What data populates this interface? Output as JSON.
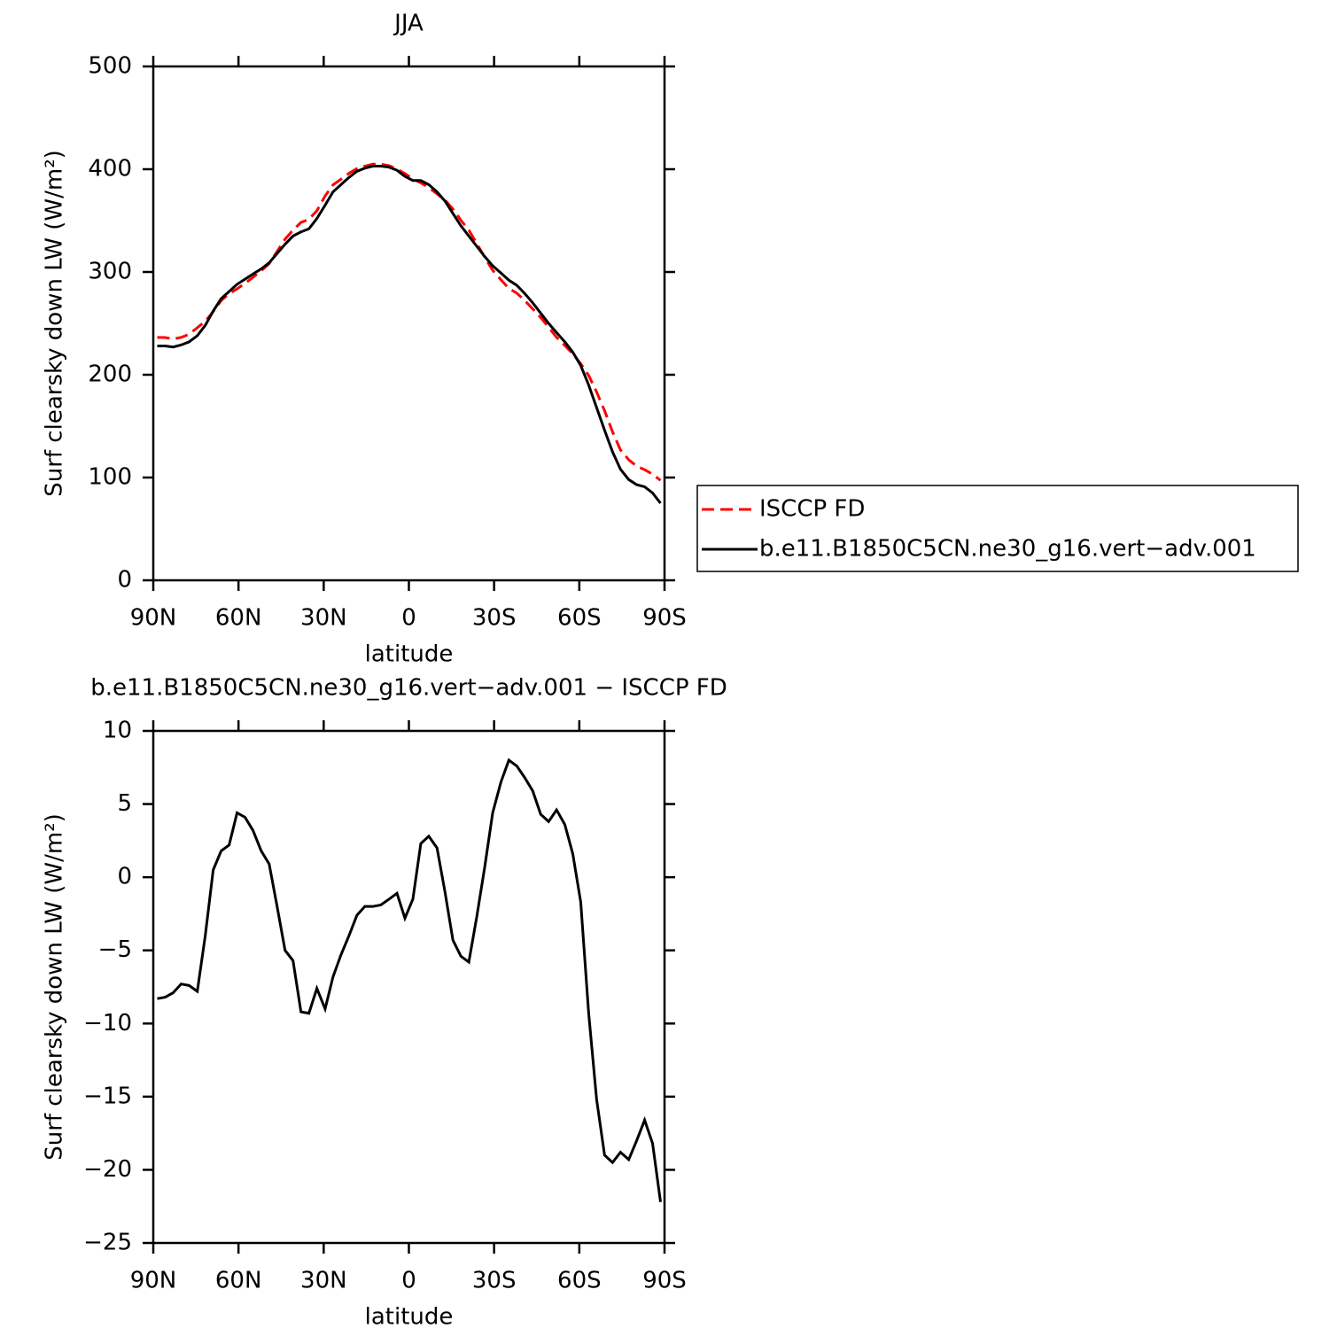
{
  "chart_data": [
    {
      "type": "line",
      "title": "JJA",
      "x_label": "latitude",
      "y_label": "Surf clearsky down LW (W/m²)",
      "x": [
        88.6,
        85.8,
        83.0,
        80.2,
        77.4,
        74.5,
        71.7,
        68.9,
        66.1,
        63.3,
        60.5,
        57.7,
        54.9,
        52.0,
        49.2,
        46.4,
        43.6,
        40.8,
        38.0,
        35.2,
        32.4,
        29.5,
        26.7,
        23.9,
        21.1,
        18.3,
        15.5,
        12.7,
        9.9,
        7.0,
        4.2,
        1.4,
        -1.4,
        -4.2,
        -7.0,
        -9.9,
        -12.7,
        -15.5,
        -18.3,
        -21.1,
        -23.9,
        -26.7,
        -29.5,
        -32.4,
        -35.2,
        -38.0,
        -40.8,
        -43.6,
        -46.4,
        -49.2,
        -52.0,
        -54.9,
        -57.7,
        -60.5,
        -63.3,
        -66.1,
        -68.9,
        -71.7,
        -74.5,
        -77.4,
        -80.2,
        -83.0,
        -85.8,
        -88.6
      ],
      "series": [
        {
          "name": "ISCCP FD",
          "color": "#ff0000",
          "style": "dashed",
          "values": [
            236.3,
            236.2,
            234.9,
            236.3,
            239.4,
            245.8,
            252,
            261.5,
            272.2,
            278.8,
            283.6,
            288.9,
            294.8,
            301.2,
            308.1,
            320,
            332,
            340.7,
            348.2,
            351.3,
            359.6,
            374,
            384.8,
            390.3,
            396,
            400.6,
            403,
            405,
            404.9,
            403.5,
            400.1,
            395.8,
            390.5,
            386.7,
            382.2,
            376,
            370,
            361.3,
            350.4,
            340.8,
            327.7,
            314.3,
            301.6,
            292.5,
            284,
            279.4,
            272.2,
            264.1,
            255.7,
            246.2,
            236.4,
            228.4,
            220.4,
            210.7,
            199.3,
            183.2,
            165,
            144.5,
            126.8,
            117.3,
            111,
            107.6,
            103.2,
            97.2
          ]
        },
        {
          "name": "b.e11.B1850C5CN.ne30_g16.vert−adv.001",
          "color": "#000000",
          "style": "solid",
          "values": [
            228,
            228,
            227,
            229,
            232,
            238,
            248,
            262,
            274,
            281,
            288,
            293,
            298,
            303,
            309,
            318,
            327,
            335,
            339,
            342,
            352,
            365,
            378,
            385,
            392,
            398,
            401,
            403,
            403,
            402,
            399,
            393,
            389,
            389,
            385,
            378,
            369,
            357,
            345,
            335,
            325,
            315,
            306,
            299,
            292,
            287,
            279,
            270,
            260,
            250,
            241,
            232,
            222,
            209,
            190,
            168,
            146,
            125,
            108,
            98,
            93,
            91,
            85,
            75
          ]
        }
      ],
      "xlim": [
        90,
        -90
      ],
      "xticks": [
        {
          "value": 90,
          "label": "90N"
        },
        {
          "value": 60,
          "label": "60N"
        },
        {
          "value": 30,
          "label": "30N"
        },
        0,
        {
          "value": -30,
          "label": "30S"
        },
        {
          "value": -60,
          "label": "60S"
        },
        {
          "value": -90,
          "label": "90S"
        }
      ],
      "ylim": [
        0,
        500
      ],
      "yticks": [
        0,
        100,
        200,
        300,
        400,
        500
      ],
      "legend": "right"
    },
    {
      "type": "line",
      "title": "b.e11.B1850C5CN.ne30_g16.vert−adv.001 − ISCCP FD",
      "x_label": "latitude",
      "y_label": "Surf clearsky down LW (W/m²)",
      "x": [
        88.6,
        85.8,
        83.0,
        80.2,
        77.4,
        74.5,
        71.7,
        68.9,
        66.1,
        63.3,
        60.5,
        57.7,
        54.9,
        52.0,
        49.2,
        46.4,
        43.6,
        40.8,
        38.0,
        35.2,
        32.4,
        29.5,
        26.7,
        23.9,
        21.1,
        18.3,
        15.5,
        12.7,
        9.9,
        7.0,
        4.2,
        1.4,
        -1.4,
        -4.2,
        -7.0,
        -9.9,
        -12.7,
        -15.5,
        -18.3,
        -21.1,
        -23.9,
        -26.7,
        -29.5,
        -32.4,
        -35.2,
        -38.0,
        -40.8,
        -43.6,
        -46.4,
        -49.2,
        -52.0,
        -54.9,
        -57.7,
        -60.5,
        -63.3,
        -66.1,
        -68.9,
        -71.7,
        -74.5,
        -77.4,
        -80.2,
        -83.0,
        -85.8,
        -88.6
      ],
      "series": [
        {
          "color": "#000000",
          "style": "solid",
          "values": [
            -8.3,
            -8.2,
            -7.9,
            -7.3,
            -7.4,
            -7.8,
            -4.0,
            0.5,
            1.8,
            2.2,
            4.4,
            4.1,
            3.2,
            1.8,
            0.9,
            -2.0,
            -5.0,
            -5.7,
            -9.2,
            -9.3,
            -7.6,
            -9.0,
            -6.8,
            -5.3,
            -4.0,
            -2.6,
            -2.0,
            -2.0,
            -1.9,
            -1.5,
            -1.1,
            -2.8,
            -1.5,
            2.3,
            2.8,
            2.0,
            -1.0,
            -4.3,
            -5.4,
            -5.8,
            -2.7,
            0.7,
            4.4,
            6.5,
            8.0,
            7.6,
            6.8,
            5.9,
            4.3,
            3.8,
            4.6,
            3.6,
            1.6,
            -1.7,
            -9.3,
            -15.2,
            -19.0,
            -19.5,
            -18.8,
            -19.3,
            -18.0,
            -16.6,
            -18.2,
            -22.2
          ]
        }
      ],
      "xlim": [
        90,
        -90
      ],
      "xticks": [
        {
          "value": 90,
          "label": "90N"
        },
        {
          "value": 60,
          "label": "60N"
        },
        {
          "value": 30,
          "label": "30N"
        },
        0,
        {
          "value": -30,
          "label": "30S"
        },
        {
          "value": -60,
          "label": "60S"
        },
        {
          "value": -90,
          "label": "90S"
        }
      ],
      "ylim": [
        -25,
        10
      ],
      "yticks": [
        {
          "value": -25,
          "label": "−25"
        },
        {
          "value": -20,
          "label": "−20"
        },
        {
          "value": -15,
          "label": "−15"
        },
        {
          "value": -10,
          "label": "−10"
        },
        {
          "value": -5,
          "label": "−5"
        },
        0,
        5,
        10
      ]
    }
  ]
}
